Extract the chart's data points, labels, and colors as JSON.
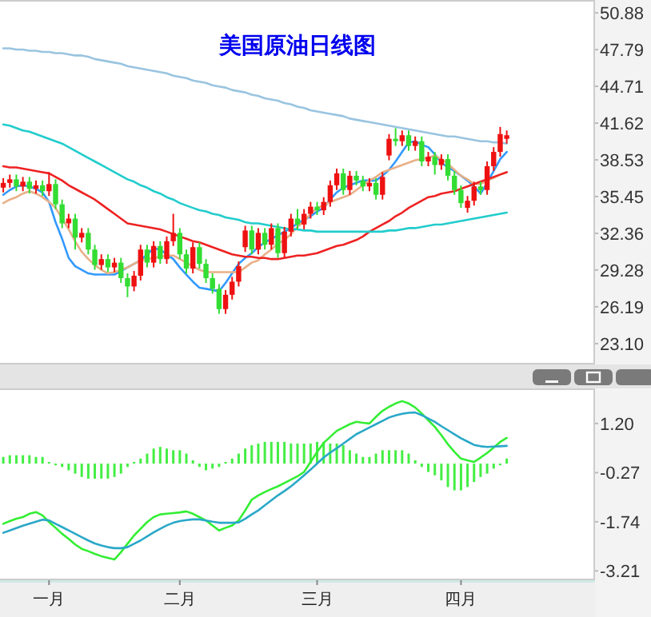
{
  "chart_data": [
    {
      "type": "candlestick",
      "title": "美国原油日线图",
      "tick_labels": "y",
      "ylim": [
        21.35,
        51.96
      ],
      "yticks": [
        50.88,
        47.79,
        44.71,
        41.62,
        38.53,
        35.45,
        32.36,
        29.28,
        26.19,
        {
          "value": 23.1,
          "label": "23.10"
        }
      ],
      "categories": [
        null,
        null,
        null,
        null,
        null,
        null,
        null,
        null,
        null,
        null,
        null,
        null,
        null,
        null,
        null,
        null,
        null,
        null,
        null,
        null,
        null,
        null,
        null,
        null,
        null,
        null,
        null,
        null,
        null,
        null,
        null,
        null,
        null,
        null,
        null,
        null,
        null,
        null,
        null,
        null,
        null,
        null,
        null,
        null,
        null,
        null,
        null,
        null,
        null,
        null,
        null,
        null,
        null,
        null,
        null,
        null,
        null,
        null,
        null,
        null,
        null,
        null,
        null,
        null,
        null,
        null,
        null,
        null,
        null,
        null,
        null,
        null,
        null,
        null,
        null,
        null,
        null,
        null,
        null,
        null,
        null,
        null,
        null,
        null,
        null,
        null,
        null,
        null,
        null,
        null,
        null
      ],
      "ohlc": [
        [
          36.2,
          37.0,
          35.8,
          36.6
        ],
        [
          36.6,
          37.3,
          36.2,
          36.9
        ],
        [
          36.9,
          37.3,
          35.9,
          36.3
        ],
        [
          36.3,
          37.1,
          35.9,
          36.7
        ],
        [
          36.7,
          37.1,
          35.7,
          36.1
        ],
        [
          36.1,
          36.8,
          35.7,
          36.4
        ],
        [
          36.4,
          36.8,
          35.5,
          35.9
        ],
        [
          35.9,
          37.5,
          35.5,
          36.5
        ],
        [
          36.5,
          36.9,
          34.4,
          34.8
        ],
        [
          34.8,
          35.2,
          32.8,
          33.2
        ],
        [
          33.2,
          34.0,
          32.8,
          33.6
        ],
        [
          33.6,
          34.0,
          31.0,
          32.0
        ],
        [
          32.0,
          32.8,
          31.6,
          32.4
        ],
        [
          32.4,
          32.8,
          30.6,
          31.0
        ],
        [
          31.0,
          31.4,
          29.3,
          29.7
        ],
        [
          29.7,
          30.6,
          29.3,
          30.2
        ],
        [
          30.2,
          30.6,
          29.1,
          29.5
        ],
        [
          29.5,
          30.3,
          29.1,
          29.9
        ],
        [
          29.9,
          30.3,
          28.2,
          28.6
        ],
        [
          28.6,
          29.0,
          27.0,
          27.9
        ],
        [
          27.9,
          29.2,
          27.5,
          28.8
        ],
        [
          28.8,
          31.4,
          28.4,
          31.0
        ],
        [
          31.0,
          31.4,
          29.5,
          29.9
        ],
        [
          29.9,
          31.7,
          29.5,
          31.3
        ],
        [
          31.3,
          31.7,
          29.8,
          30.2
        ],
        [
          30.2,
          32.1,
          29.8,
          31.7
        ],
        [
          31.7,
          34.0,
          31.3,
          32.4
        ],
        [
          32.4,
          32.8,
          30.2,
          30.6
        ],
        [
          30.6,
          31.0,
          29.0,
          29.4
        ],
        [
          29.4,
          31.6,
          29.0,
          31.2
        ],
        [
          31.2,
          31.6,
          29.4,
          29.8
        ],
        [
          29.8,
          30.2,
          28.2,
          28.6
        ],
        [
          28.6,
          29.0,
          27.3,
          27.7
        ],
        [
          27.7,
          28.1,
          25.6,
          26.0
        ],
        [
          26.0,
          27.6,
          25.6,
          27.2
        ],
        [
          27.2,
          28.7,
          26.8,
          28.3
        ],
        [
          28.3,
          30.0,
          27.9,
          29.6
        ],
        [
          31.2,
          33.0,
          30.8,
          32.6
        ],
        [
          32.6,
          33.0,
          30.6,
          31.0
        ],
        [
          31.0,
          32.8,
          30.6,
          32.4
        ],
        [
          32.4,
          32.8,
          31.0,
          31.4
        ],
        [
          31.4,
          33.2,
          31.0,
          32.8
        ],
        [
          32.8,
          33.2,
          30.3,
          30.7
        ],
        [
          30.7,
          32.9,
          30.3,
          32.5
        ],
        [
          32.5,
          34.0,
          32.1,
          33.6
        ],
        [
          33.6,
          34.4,
          32.7,
          33.1
        ],
        [
          33.1,
          34.4,
          32.7,
          34.0
        ],
        [
          34.0,
          35.0,
          33.6,
          34.6
        ],
        [
          34.6,
          35.0,
          33.9,
          34.3
        ],
        [
          34.3,
          35.4,
          33.9,
          35.0
        ],
        [
          35.0,
          36.8,
          34.6,
          36.4
        ],
        [
          36.4,
          37.8,
          36.0,
          37.4
        ],
        [
          37.4,
          37.8,
          35.6,
          36.0
        ],
        [
          36.0,
          37.6,
          35.6,
          37.2
        ],
        [
          37.2,
          37.6,
          36.4,
          36.8
        ],
        [
          36.8,
          37.2,
          35.9,
          36.3
        ],
        [
          36.3,
          37.0,
          35.9,
          36.6
        ],
        [
          36.6,
          37.0,
          35.2,
          35.6
        ],
        [
          35.6,
          37.5,
          35.2,
          37.1
        ],
        [
          38.9,
          40.7,
          38.5,
          40.3
        ],
        [
          40.3,
          41.2,
          39.7,
          40.1
        ],
        [
          40.1,
          41.0,
          39.7,
          40.6
        ],
        [
          40.6,
          41.0,
          39.3,
          39.7
        ],
        [
          39.7,
          40.5,
          39.3,
          40.1
        ],
        [
          40.1,
          40.5,
          38.0,
          38.4
        ],
        [
          38.4,
          39.2,
          38.0,
          38.8
        ],
        [
          38.8,
          39.2,
          37.3,
          38.1
        ],
        [
          38.1,
          39.0,
          37.7,
          38.6
        ],
        [
          38.6,
          39.0,
          36.8,
          37.2
        ],
        [
          37.2,
          37.6,
          35.6,
          36.0
        ],
        [
          36.0,
          36.4,
          34.5,
          34.9
        ],
        [
          34.5,
          35.5,
          34.1,
          35.1
        ],
        [
          35.1,
          36.7,
          34.7,
          36.3
        ],
        [
          36.3,
          36.7,
          35.6,
          36.0
        ],
        [
          36.0,
          38.4,
          35.6,
          38.0
        ],
        [
          38.0,
          39.6,
          37.6,
          39.2
        ],
        [
          39.2,
          41.3,
          38.8,
          40.7
        ],
        [
          40.3,
          41.0,
          39.9,
          40.6
        ],
        null,
        null,
        null,
        null,
        null,
        null,
        null,
        null,
        null,
        null,
        null,
        null,
        null
      ],
      "colors": [
        "#ee1111",
        "#ee1111",
        "#33dd33",
        "#ee1111",
        "#33dd33",
        "#ee1111",
        "#33dd33",
        "#ee1111",
        "#33dd33",
        "#33dd33",
        "#ee1111",
        "#33dd33",
        "#ee1111",
        "#33dd33",
        "#33dd33",
        "#ee1111",
        "#33dd33",
        "#ee1111",
        "#33dd33",
        "#33dd33",
        "#ee1111",
        "#ee1111",
        "#33dd33",
        "#ee1111",
        "#33dd33",
        "#ee1111",
        "#ee1111",
        "#33dd33",
        "#33dd33",
        "#ee1111",
        "#33dd33",
        "#33dd33",
        "#33dd33",
        "#33dd33",
        "#ee1111",
        "#ee1111",
        "#ee1111",
        "#ee1111",
        "#33dd33",
        "#ee1111",
        "#33dd33",
        "#ee1111",
        "#33dd33",
        "#ee1111",
        "#ee1111",
        "#33dd33",
        "#ee1111",
        "#ee1111",
        "#33dd33",
        "#ee1111",
        "#ee1111",
        "#ee1111",
        "#33dd33",
        "#ee1111",
        "#33dd33",
        "#33dd33",
        "#ee1111",
        "#33dd33",
        "#ee1111",
        "#ee1111",
        "#33dd33",
        "#ee1111",
        "#33dd33",
        "#ee1111",
        "#33dd33",
        "#ee1111",
        "#33dd33",
        "#ee1111",
        "#33dd33",
        "#33dd33",
        "#33dd33",
        "#ee1111",
        "#ee1111",
        "#33dd33",
        "#ee1111",
        "#ee1111",
        "#ee1111",
        "#ee1111",
        null,
        null,
        null,
        null,
        null,
        null,
        null,
        null,
        null,
        null,
        null,
        null,
        null
      ],
      "series": [
        {
          "type": "line",
          "color": "#3399ff",
          "values": [
            35.6,
            36.0,
            36.3,
            36.4,
            36.3,
            36.1,
            35.8,
            35.0,
            33.3,
            31.9,
            30.3,
            29.6,
            29.3,
            29.0,
            28.9,
            28.9,
            28.9,
            28.9,
            29.2,
            29.5,
            29.8,
            30.1,
            30.6,
            31.1,
            31.0,
            30.6,
            30.2,
            29.5,
            28.9,
            28.3,
            27.8,
            27.7,
            27.6,
            27.5,
            28.2,
            29.0,
            29.8,
            30.3,
            30.7,
            31.2,
            31.6,
            31.9,
            32.2,
            32.5,
            32.8,
            33.2,
            33.5,
            33.8,
            34.2,
            34.5,
            35.2,
            35.8,
            36.2,
            36.4,
            36.6,
            36.8,
            36.8,
            36.8,
            37.2,
            37.7,
            38.4,
            39.2,
            40.0,
            40.1,
            39.8,
            39.6,
            39.0,
            38.3,
            37.9,
            37.6,
            37.2,
            36.8,
            36.3,
            35.7,
            36.6,
            37.6,
            38.6,
            39.2,
            null,
            null,
            null,
            null,
            null,
            null,
            null,
            null,
            null,
            null,
            null,
            null,
            null
          ]
        },
        {
          "type": "line",
          "color": "#e8b088",
          "values": [
            34.9,
            35.2,
            35.4,
            35.7,
            35.9,
            35.7,
            35.4,
            35.0,
            34.5,
            33.6,
            32.7,
            31.7,
            30.8,
            30.2,
            29.7,
            29.3,
            29.0,
            29.1,
            29.3,
            29.5,
            29.8,
            30.1,
            30.2,
            30.3,
            30.4,
            30.5,
            30.5,
            30.2,
            29.9,
            29.6,
            29.3,
            29.1,
            29.1,
            29.1,
            29.1,
            29.1,
            29.1,
            29.5,
            29.9,
            30.1,
            30.6,
            31.0,
            31.5,
            31.8,
            32.3,
            32.9,
            33.4,
            34.0,
            34.5,
            34.7,
            35.0,
            35.2,
            35.4,
            35.6,
            36.0,
            36.4,
            36.8,
            37.1,
            37.5,
            37.7,
            37.9,
            38.1,
            38.3,
            38.5,
            38.6,
            38.7,
            38.9,
            38.6,
            38.2,
            37.7,
            37.2,
            36.9,
            36.5,
            36.5,
            36.8,
            37.0,
            37.3,
            37.5,
            null,
            null,
            null,
            null,
            null,
            null,
            null,
            null,
            null,
            null,
            null,
            null,
            null
          ]
        },
        {
          "type": "line",
          "color": "#ee2222",
          "values": [
            38.0,
            37.9,
            37.9,
            37.8,
            37.7,
            37.6,
            37.5,
            37.4,
            37.1,
            36.8,
            36.4,
            36.1,
            35.8,
            35.5,
            35.2,
            34.8,
            34.4,
            34.0,
            33.6,
            33.2,
            33.1,
            33.0,
            32.9,
            32.8,
            32.7,
            32.5,
            32.3,
            32.1,
            31.9,
            31.7,
            31.6,
            31.4,
            31.2,
            31.0,
            30.8,
            30.6,
            30.5,
            30.4,
            30.4,
            30.3,
            30.3,
            30.2,
            30.2,
            30.3,
            30.4,
            30.5,
            30.5,
            30.6,
            30.7,
            30.9,
            31.1,
            31.3,
            31.4,
            31.6,
            31.8,
            32.1,
            32.5,
            32.8,
            33.1,
            33.4,
            33.8,
            34.1,
            34.5,
            34.8,
            35.1,
            35.4,
            35.5,
            35.7,
            35.8,
            35.9,
            36.1,
            36.3,
            36.5,
            36.7,
            36.9,
            37.1,
            37.3,
            37.5,
            null,
            null,
            null,
            null,
            null,
            null,
            null,
            null,
            null,
            null,
            null,
            null,
            null
          ]
        },
        {
          "type": "line",
          "color": "#22cccc",
          "values": [
            41.5,
            41.4,
            41.2,
            41.0,
            40.9,
            40.7,
            40.5,
            40.3,
            40.1,
            39.9,
            39.6,
            39.3,
            39.0,
            38.7,
            38.4,
            38.1,
            37.8,
            37.5,
            37.2,
            36.9,
            36.7,
            36.4,
            36.2,
            35.9,
            35.7,
            35.4,
            35.2,
            34.9,
            34.7,
            34.5,
            34.3,
            34.2,
            34.0,
            33.9,
            33.7,
            33.6,
            33.5,
            33.3,
            33.2,
            33.2,
            33.1,
            33.0,
            32.9,
            32.8,
            32.7,
            32.7,
            32.6,
            32.6,
            32.5,
            32.5,
            32.5,
            32.5,
            32.5,
            32.5,
            32.5,
            32.5,
            32.5,
            32.5,
            32.5,
            32.6,
            32.6,
            32.7,
            32.8,
            32.8,
            32.9,
            33.0,
            33.1,
            33.1,
            33.2,
            33.3,
            33.4,
            33.5,
            33.6,
            33.7,
            33.8,
            33.9,
            34.0,
            34.1,
            null,
            null,
            null,
            null,
            null,
            null,
            null,
            null,
            null,
            null,
            null,
            null,
            null
          ]
        },
        {
          "type": "line",
          "color": "#99c4e0",
          "values": [
            47.9,
            47.9,
            47.8,
            47.8,
            47.7,
            47.7,
            47.6,
            47.6,
            47.5,
            47.5,
            47.4,
            47.3,
            47.3,
            47.2,
            47.0,
            46.9,
            46.8,
            46.7,
            46.6,
            46.4,
            46.3,
            46.2,
            46.1,
            46.0,
            45.9,
            45.8,
            45.6,
            45.5,
            45.4,
            45.2,
            45.1,
            45.0,
            44.8,
            44.7,
            44.6,
            44.4,
            44.3,
            44.2,
            44.0,
            43.9,
            43.7,
            43.6,
            43.5,
            43.3,
            43.2,
            43.0,
            42.9,
            42.7,
            42.6,
            42.5,
            42.4,
            42.3,
            42.2,
            42.0,
            41.9,
            41.8,
            41.7,
            41.6,
            41.5,
            41.4,
            41.3,
            41.2,
            41.1,
            41.0,
            40.9,
            40.8,
            40.7,
            40.6,
            40.5,
            40.5,
            40.4,
            40.3,
            40.2,
            40.1,
            40.1,
            40.0,
            40.0,
            39.9,
            null,
            null,
            null,
            null,
            null,
            null,
            null,
            null,
            null,
            null,
            null,
            null,
            null
          ]
        }
      ]
    },
    {
      "type": "line",
      "ylim": [
        -3.49,
        2.25
      ],
      "yticks": [
        {
          "value": 1.2,
          "label": "1.20"
        },
        {
          "value": -0.27,
          "label": "-0.27"
        },
        {
          "value": -1.74,
          "label": "-1.74"
        },
        {
          "value": -3.21,
          "label": "-3.21"
        }
      ],
      "categories": [
        null,
        null,
        null,
        null,
        null,
        null,
        null,
        "一月",
        null,
        null,
        null,
        null,
        null,
        null,
        null,
        null,
        null,
        null,
        null,
        null,
        null,
        null,
        null,
        null,
        null,
        null,
        null,
        "二月",
        null,
        null,
        null,
        null,
        null,
        null,
        null,
        null,
        null,
        null,
        null,
        null,
        null,
        null,
        null,
        null,
        null,
        null,
        null,
        null,
        "三月",
        null,
        null,
        null,
        null,
        null,
        null,
        null,
        null,
        null,
        null,
        null,
        null,
        null,
        null,
        null,
        null,
        null,
        null,
        null,
        null,
        null,
        "四月",
        null,
        null,
        null,
        null,
        null,
        null,
        null,
        null,
        null,
        null,
        null,
        null,
        null,
        null,
        null,
        null,
        null,
        null,
        null,
        null
      ],
      "series": [
        {
          "type": "bar",
          "color": "#44ee44",
          "values": [
            0.2,
            0.25,
            0.25,
            0.25,
            0.25,
            0.2,
            0.2,
            0.05,
            -0.05,
            -0.1,
            -0.2,
            -0.3,
            -0.4,
            -0.45,
            -0.45,
            -0.45,
            -0.45,
            -0.4,
            -0.3,
            -0.1,
            0.05,
            0.15,
            0.3,
            0.45,
            0.5,
            0.45,
            0.4,
            0.4,
            0.3,
            0.1,
            -0.1,
            -0.2,
            -0.15,
            -0.1,
            0.05,
            0.15,
            0.3,
            0.45,
            0.55,
            0.6,
            0.65,
            0.65,
            0.65,
            0.65,
            0.6,
            0.6,
            0.6,
            0.6,
            0.65,
            0.65,
            0.6,
            0.6,
            0.55,
            0.4,
            0.3,
            0.2,
            0.2,
            0.3,
            0.4,
            0.4,
            0.4,
            0.4,
            0.3,
            0.1,
            -0.1,
            -0.25,
            -0.35,
            -0.5,
            -0.7,
            -0.8,
            -0.8,
            -0.7,
            -0.55,
            -0.4,
            -0.3,
            -0.15,
            -0.05,
            0.15,
            null,
            null,
            null,
            null,
            null,
            null,
            null,
            null,
            null,
            null,
            null,
            null,
            null
          ]
        },
        {
          "type": "line",
          "color": "#33ee33",
          "values": [
            -1.8,
            -1.72,
            -1.65,
            -1.6,
            -1.5,
            -1.45,
            -1.55,
            -1.75,
            -1.92,
            -2.1,
            -2.25,
            -2.42,
            -2.55,
            -2.62,
            -2.7,
            -2.77,
            -2.82,
            -2.87,
            -2.65,
            -2.4,
            -2.15,
            -1.95,
            -1.75,
            -1.6,
            -1.52,
            -1.5,
            -1.48,
            -1.46,
            -1.43,
            -1.5,
            -1.6,
            -1.7,
            -1.85,
            -2.0,
            -1.92,
            -1.85,
            -1.7,
            -1.4,
            -1.08,
            -0.95,
            -0.85,
            -0.76,
            -0.68,
            -0.58,
            -0.48,
            -0.38,
            -0.25,
            0.05,
            0.35,
            0.62,
            0.8,
            0.98,
            1.08,
            1.18,
            1.25,
            1.22,
            1.2,
            1.4,
            1.58,
            1.7,
            1.8,
            1.87,
            1.8,
            1.68,
            1.5,
            1.3,
            1.1,
            0.85,
            0.58,
            0.35,
            0.15,
            0.1,
            0.05,
            0.18,
            0.32,
            0.48,
            0.65,
            0.77,
            null,
            null,
            null,
            null,
            null,
            null,
            null,
            null,
            null,
            null,
            null,
            null,
            null
          ]
        },
        {
          "type": "line",
          "color": "#2aa8c8",
          "values": [
            -2.07,
            -2.0,
            -1.93,
            -1.86,
            -1.8,
            -1.74,
            -1.68,
            -1.7,
            -1.8,
            -1.9,
            -2.0,
            -2.1,
            -2.2,
            -2.3,
            -2.39,
            -2.45,
            -2.5,
            -2.53,
            -2.53,
            -2.5,
            -2.4,
            -2.3,
            -2.18,
            -2.06,
            -1.95,
            -1.85,
            -1.77,
            -1.72,
            -1.69,
            -1.67,
            -1.67,
            -1.7,
            -1.74,
            -1.77,
            -1.77,
            -1.77,
            -1.76,
            -1.65,
            -1.52,
            -1.4,
            -1.25,
            -1.1,
            -0.95,
            -0.82,
            -0.68,
            -0.52,
            -0.35,
            -0.18,
            0.0,
            0.18,
            0.33,
            0.46,
            0.6,
            0.74,
            0.88,
            0.98,
            1.08,
            1.18,
            1.28,
            1.38,
            1.44,
            1.49,
            1.52,
            1.53,
            1.45,
            1.35,
            1.25,
            1.12,
            1.0,
            0.88,
            0.76,
            0.66,
            0.56,
            0.52,
            0.5,
            0.51,
            0.52,
            0.53,
            null,
            null,
            null,
            null,
            null,
            null,
            null,
            null,
            null,
            null,
            null,
            null,
            null
          ]
        }
      ]
    }
  ]
}
